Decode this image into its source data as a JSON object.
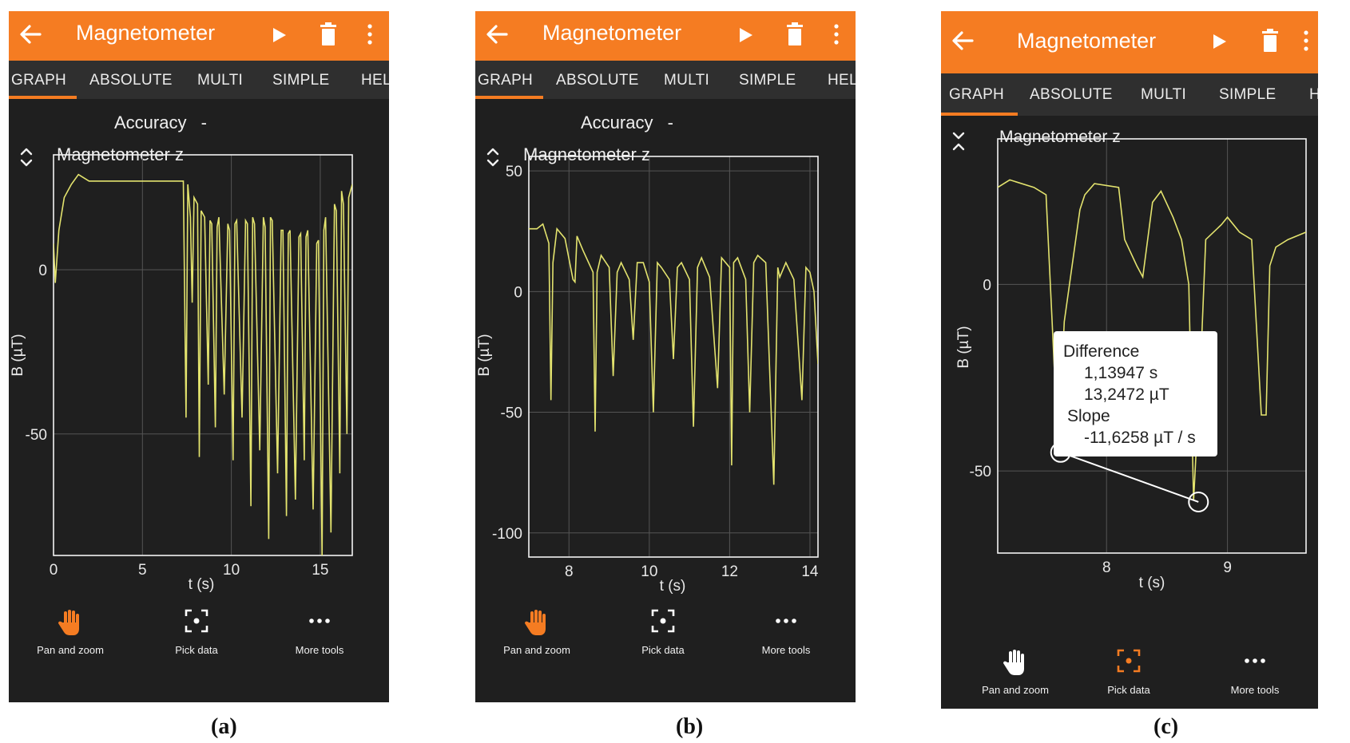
{
  "app": {
    "title": "Magnetometer",
    "tabs": [
      "GRAPH",
      "ABSOLUTE",
      "MULTI",
      "SIMPLE",
      "HELP"
    ],
    "accent_color": "#f57c22",
    "background_color": "#1f1f1f",
    "trace_color": "#e3e36e",
    "accuracy_label": "Accuracy",
    "accuracy_value": "-",
    "tools": [
      {
        "label": "Pan and zoom",
        "icon": "hand-icon"
      },
      {
        "label": "Pick data",
        "icon": "crosshair-icon"
      },
      {
        "label": "More tools",
        "icon": "more-horizontal-icon"
      }
    ]
  },
  "screens": [
    {
      "caption": "(a)",
      "active_tab": "GRAPH",
      "active_tool": "Pan and zoom",
      "show_accuracy": true,
      "graph_title": "Magnetometer z"
    },
    {
      "caption": "(b)",
      "active_tab": "GRAPH",
      "active_tool": "Pan and zoom",
      "show_accuracy": true,
      "graph_title": "Magnetometer z"
    },
    {
      "caption": "(c)",
      "active_tab": "GRAPH",
      "active_tool": "Pick data",
      "show_accuracy": false,
      "graph_title": "Magnetometer z",
      "pick_data": {
        "title": "Difference",
        "dt": "1,13947 s",
        "dB": "13,2472 µT",
        "slope_label": "Slope",
        "slope": "-11,6258 µT /  s",
        "point1": {
          "t": 7.62,
          "B": -45
        },
        "point2": {
          "t": 8.76,
          "B": -58.3
        }
      }
    }
  ],
  "chart_data": [
    {
      "type": "line",
      "title": "Magnetometer z",
      "xlabel": "t (s)",
      "ylabel": "B (µT)",
      "xlim": [
        0,
        16.8
      ],
      "ylim": [
        -87,
        35
      ],
      "xticks": [
        0,
        5,
        10,
        15
      ],
      "yticks": [
        -50,
        0
      ],
      "grid": true,
      "x": [
        0,
        0.1,
        0.3,
        0.6,
        1.0,
        1.4,
        2,
        3,
        4,
        5,
        6,
        7,
        7.3,
        7.45,
        7.55,
        7.7,
        7.8,
        7.9,
        8.1,
        8.2,
        8.3,
        8.5,
        8.7,
        8.8,
        8.9,
        9.1,
        9.2,
        9.3,
        9.6,
        9.8,
        9.9,
        10.1,
        10.2,
        10.3,
        10.6,
        10.8,
        10.9,
        11.1,
        11.2,
        11.3,
        11.6,
        11.8,
        11.9,
        12.1,
        12.2,
        12.3,
        12.6,
        12.8,
        12.9,
        13.1,
        13.2,
        13.3,
        13.6,
        13.8,
        13.9,
        14.1,
        14.2,
        14.3,
        14.6,
        14.8,
        14.9,
        15.1,
        15.2,
        15.3,
        15.6,
        15.8,
        15.9,
        16.1,
        16.2,
        16.3,
        16.5,
        16.6,
        16.8
      ],
      "values": [
        8,
        -4,
        12,
        22,
        26,
        29,
        27,
        27,
        27,
        27,
        27,
        27,
        27,
        -45,
        26,
        16,
        -10,
        22,
        20,
        -57,
        18,
        16,
        -35,
        15,
        14,
        -48,
        13,
        16,
        -38,
        14,
        12,
        -58,
        14,
        15,
        -45,
        15,
        14,
        -72,
        16,
        14,
        -55,
        16,
        13,
        -82,
        16,
        15,
        -62,
        12,
        12,
        -75,
        11,
        12,
        -70,
        10,
        11,
        -58,
        10,
        12,
        -73,
        8,
        9,
        -88,
        12,
        16,
        -80,
        20,
        18,
        -62,
        24,
        20,
        -50,
        22,
        26
      ]
    },
    {
      "type": "line",
      "title": "Magnetometer z",
      "xlabel": "t (s)",
      "ylabel": "B (µT)",
      "xlim": [
        7,
        14.2
      ],
      "ylim": [
        -110,
        56
      ],
      "xticks": [
        8,
        10,
        12,
        14
      ],
      "yticks": [
        -100,
        -50,
        0,
        50
      ],
      "grid": true,
      "x": [
        7.0,
        7.2,
        7.35,
        7.5,
        7.55,
        7.6,
        7.7,
        7.9,
        8.1,
        8.15,
        8.2,
        8.35,
        8.6,
        8.65,
        8.7,
        8.8,
        9.0,
        9.1,
        9.2,
        9.3,
        9.5,
        9.6,
        9.7,
        9.85,
        10.0,
        10.1,
        10.2,
        10.3,
        10.5,
        10.6,
        10.7,
        10.8,
        11.0,
        11.1,
        11.2,
        11.3,
        11.5,
        11.7,
        11.8,
        12.0,
        12.05,
        12.1,
        12.2,
        12.4,
        12.5,
        12.6,
        12.7,
        12.9,
        13.1,
        13.2,
        13.25,
        13.4,
        13.6,
        13.8,
        13.9,
        14.0,
        14.1,
        14.2
      ],
      "values": [
        26,
        26,
        28,
        20,
        -45,
        12,
        26,
        22,
        5,
        4,
        23,
        17,
        8,
        -58,
        8,
        15,
        10,
        -35,
        8,
        12,
        5,
        -20,
        12,
        12,
        4,
        -50,
        12,
        10,
        5,
        -28,
        10,
        12,
        5,
        -56,
        10,
        14,
        6,
        -40,
        14,
        10,
        -72,
        12,
        14,
        5,
        -50,
        12,
        15,
        12,
        -80,
        10,
        6,
        12,
        5,
        -45,
        10,
        8,
        0,
        -30
      ]
    },
    {
      "type": "line",
      "title": "Magnetometer z",
      "xlabel": "t (s)",
      "ylabel": "B (µT)",
      "xlim": [
        7.1,
        9.65
      ],
      "ylim": [
        -72,
        39
      ],
      "xticks": [
        8,
        9
      ],
      "yticks": [
        -50,
        0
      ],
      "grid": true,
      "x": [
        7.1,
        7.2,
        7.4,
        7.5,
        7.55,
        7.6,
        7.65,
        7.78,
        7.82,
        7.9,
        8.1,
        8.15,
        8.25,
        8.3,
        8.38,
        8.45,
        8.55,
        8.62,
        8.68,
        8.72,
        8.78,
        8.82,
        8.95,
        9.0,
        9.1,
        9.2,
        9.28,
        9.32,
        9.35,
        9.4,
        9.5,
        9.65
      ],
      "values": [
        26,
        28,
        26,
        24,
        -10,
        -45,
        -10,
        20,
        24,
        27,
        26,
        12,
        5,
        2,
        22,
        25,
        18,
        12,
        0,
        -58,
        -20,
        12,
        16,
        18,
        14,
        12,
        -35,
        -35,
        5,
        10,
        12,
        14
      ]
    }
  ]
}
